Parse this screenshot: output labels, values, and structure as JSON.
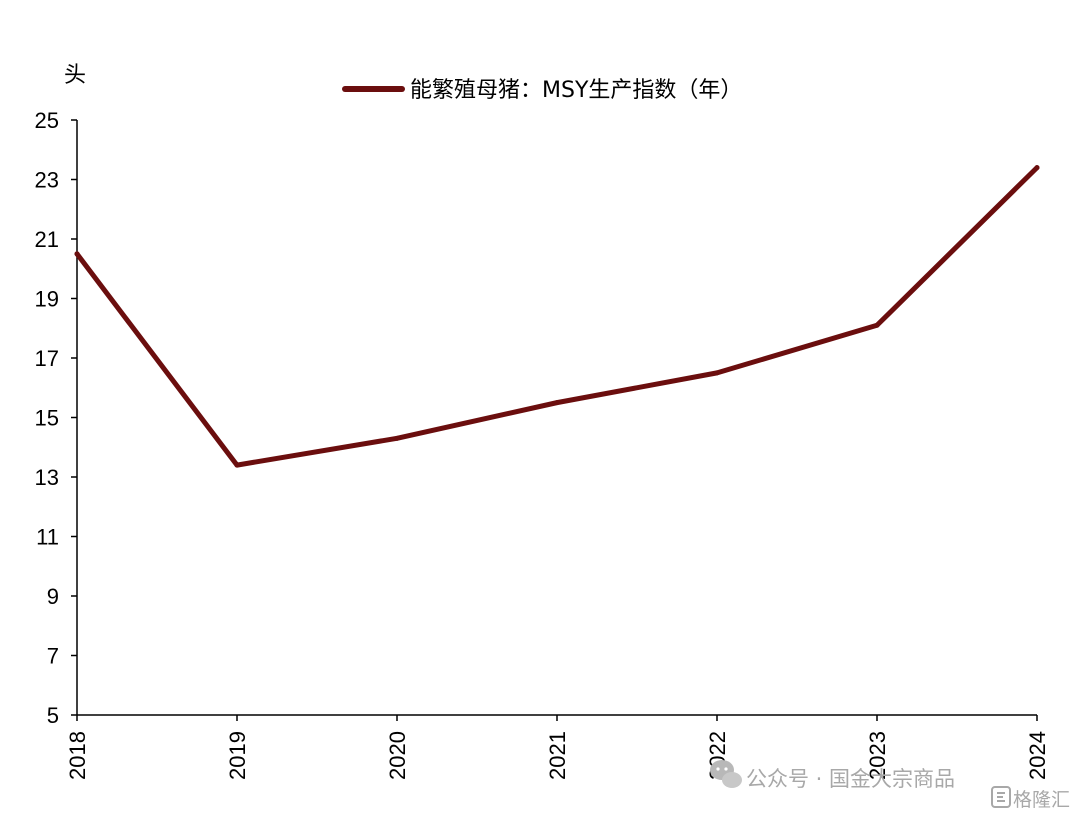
{
  "chart_data": {
    "type": "line",
    "title": "",
    "ylabel": "头",
    "xlabel": "",
    "categories": [
      "2018",
      "2019",
      "2020",
      "2021",
      "2022",
      "2023",
      "2024"
    ],
    "series": [
      {
        "name": "能繁殖母猪：MSY生产指数（年）",
        "values": [
          20.5,
          13.4,
          14.3,
          15.5,
          16.5,
          18.1,
          23.4
        ],
        "color": "#6b0e0e"
      }
    ],
    "ylim": [
      5,
      25
    ],
    "yticks": [
      5,
      7,
      9,
      11,
      13,
      15,
      17,
      19,
      21,
      23,
      25
    ],
    "grid": false,
    "legend": "top-center"
  },
  "watermark": {
    "text": "公众号 · 国金大宗商品",
    "brand": "格隆汇"
  }
}
